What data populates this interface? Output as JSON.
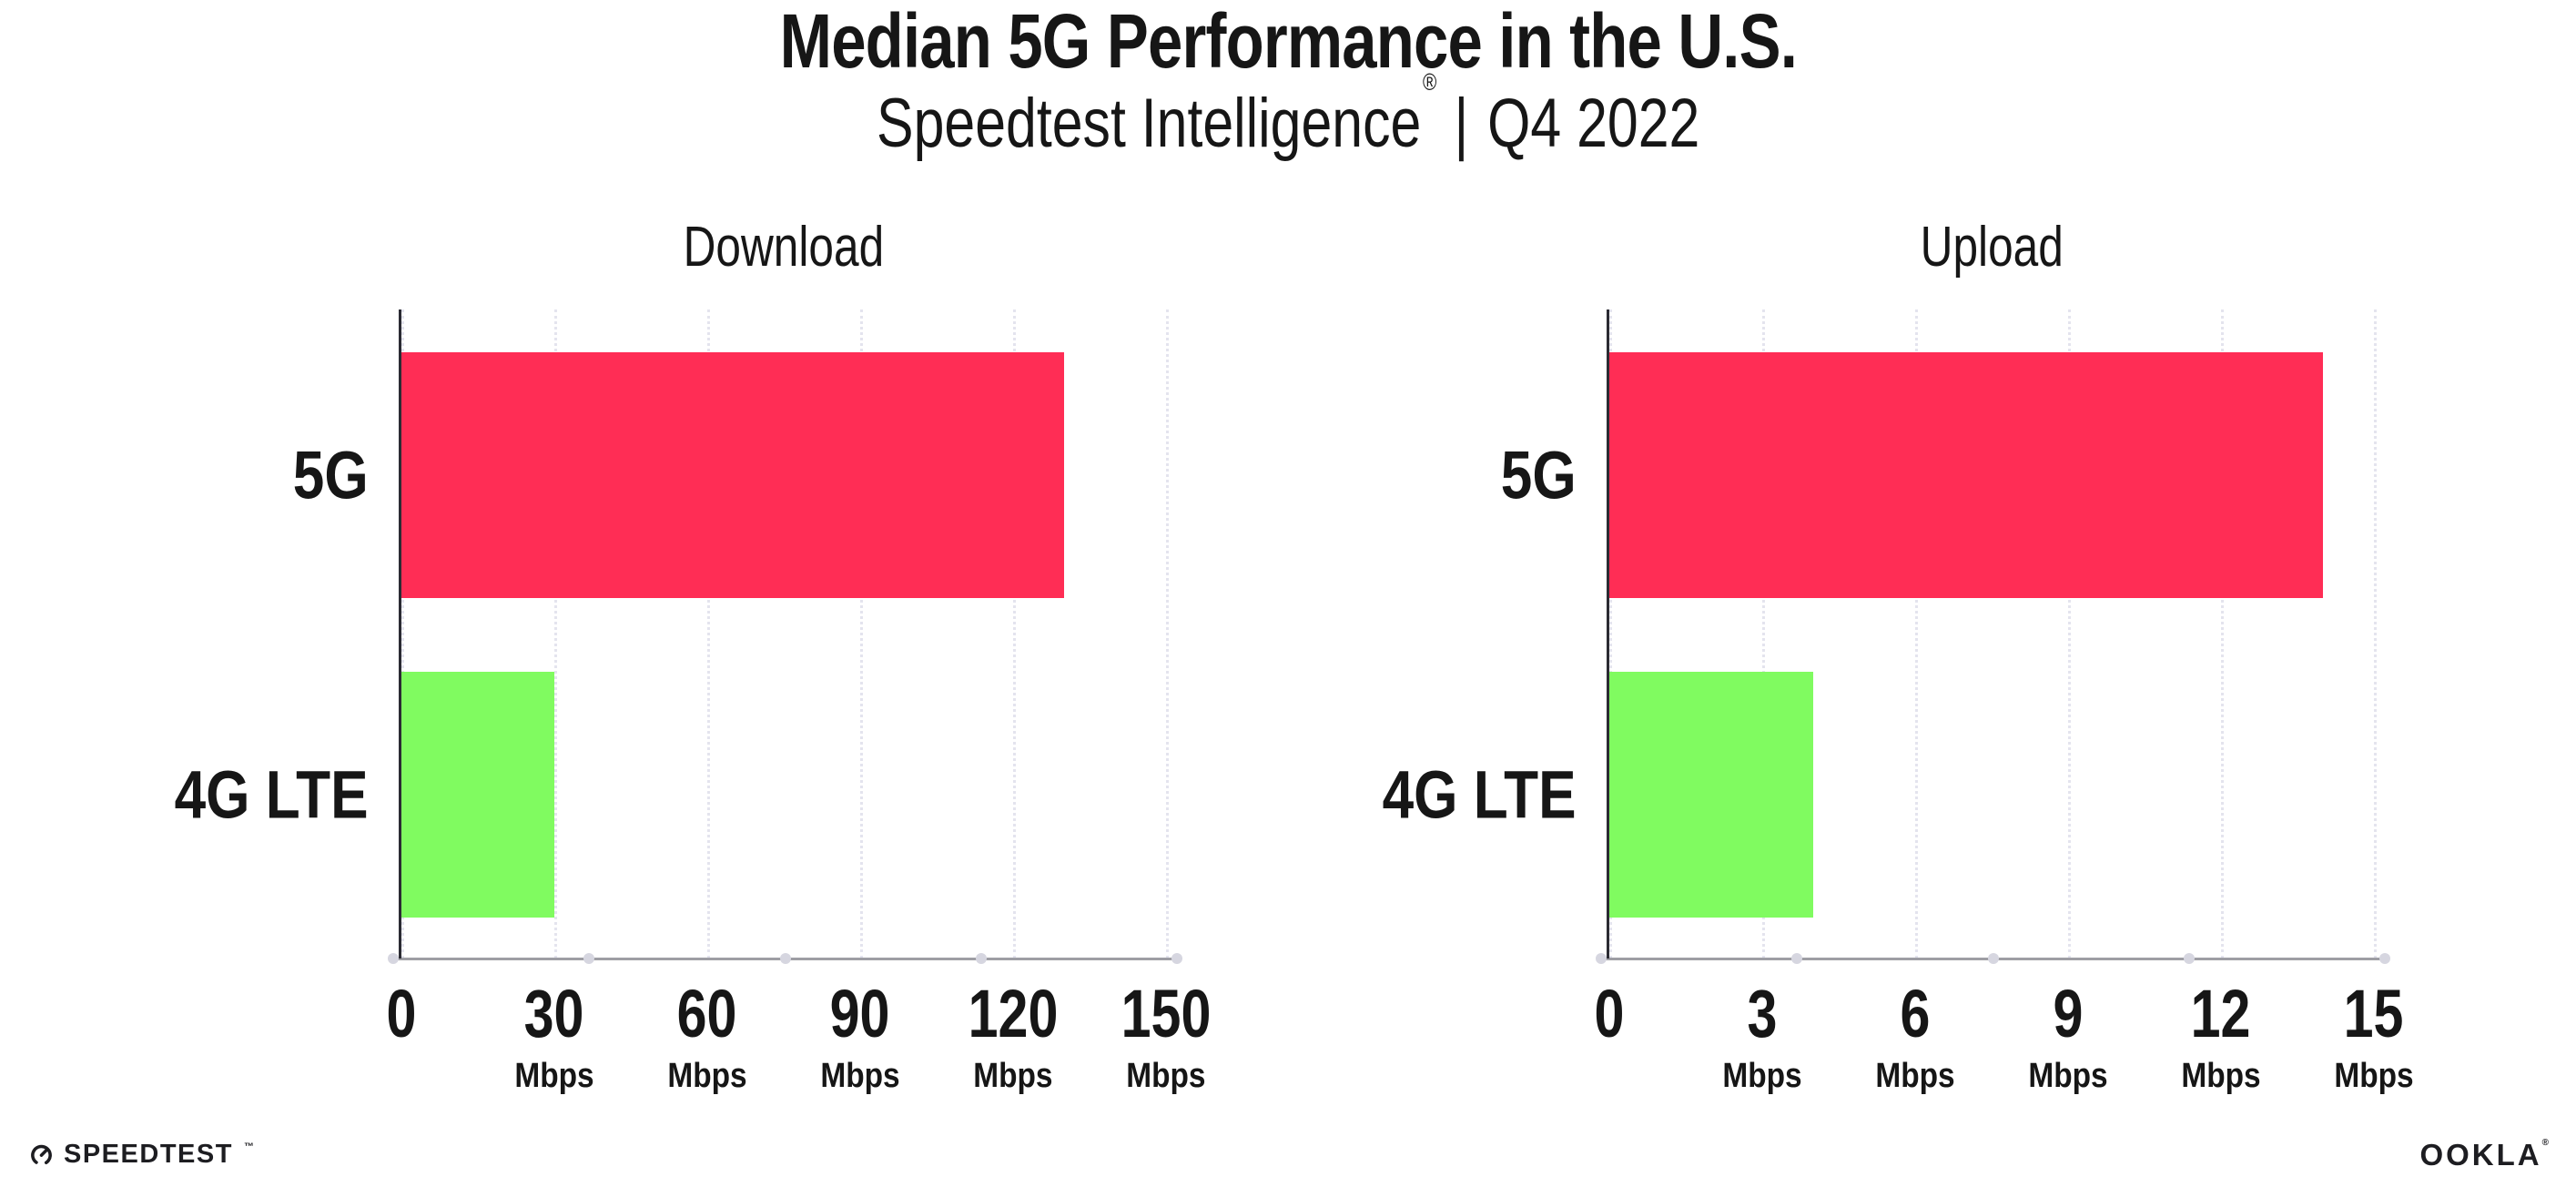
{
  "header": {
    "title": "Median 5G Performance in the U.S.",
    "subtitle": {
      "brand": "Speedtest Intelligence",
      "registered": "®",
      "separator": "|",
      "period": "Q4 2022"
    }
  },
  "chart_data": [
    {
      "type": "bar",
      "orientation": "horizontal",
      "title": "Download",
      "categories": [
        "5G",
        "4G LTE"
      ],
      "values": [
        130,
        30
      ],
      "unit": "Mbps",
      "xlabel": "",
      "ylabel": "",
      "xlim": [
        0,
        150
      ],
      "xticks": [
        0,
        30,
        60,
        90,
        120,
        150
      ],
      "grid": "vertical-dotted",
      "legend": "none",
      "bar_colors": [
        "#FF2D55",
        "#80FB60"
      ]
    },
    {
      "type": "bar",
      "orientation": "horizontal",
      "title": "Upload",
      "categories": [
        "5G",
        "4G LTE"
      ],
      "values": [
        14,
        4
      ],
      "unit": "Mbps",
      "xlabel": "",
      "ylabel": "",
      "xlim": [
        0,
        15
      ],
      "xticks": [
        0,
        3,
        6,
        9,
        12,
        15
      ],
      "grid": "vertical-dotted",
      "legend": "none",
      "bar_colors": [
        "#FF2D55",
        "#80FB60"
      ]
    }
  ],
  "footer": {
    "speedtest": {
      "label": "SPEEDTEST",
      "trademark": "™",
      "icon": "speedtest-gauge-icon"
    },
    "ookla": {
      "label": "OOKLA",
      "registered": "®"
    }
  },
  "colors": {
    "bar_5g": "#FF2D55",
    "bar_4g_lte": "#80FB60",
    "gridline": "#E4E4EE",
    "x_axis": "#9E9EA4",
    "y_axis": "#2B2B33",
    "axis_dot": "#D6D6E0",
    "text": "#161616"
  }
}
